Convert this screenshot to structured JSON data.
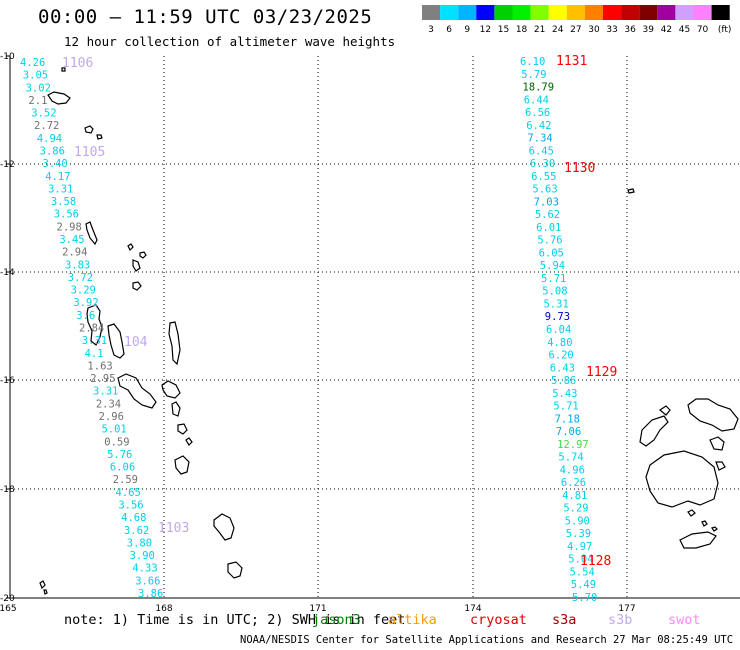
{
  "title": "00:00 – 11:59 UTC 03/23/2025",
  "subtitle": "12 hour collection of altimeter wave heights",
  "colorbar": {
    "colors": [
      "#808080",
      "#00e0ff",
      "#00b4ff",
      "#0000ff",
      "#00d000",
      "#00f000",
      "#80ff00",
      "#ffff00",
      "#ffc000",
      "#ff8000",
      "#ff0000",
      "#c00000",
      "#800000",
      "#a000a0",
      "#d0a0ff",
      "#ff80ff",
      "#000000"
    ],
    "labels": [
      "3",
      "6",
      "9",
      "12",
      "15",
      "18",
      "21",
      "24",
      "27",
      "30",
      "33",
      "36",
      "39",
      "42",
      "45",
      "70",
      "(ft)"
    ]
  },
  "axes": {
    "lon_ticks": [
      "165",
      "168",
      "171",
      "174",
      "177"
    ],
    "lat_ticks": [
      "-10",
      "-12",
      "-14",
      "-16",
      "-18",
      "-20"
    ]
  },
  "passes": [
    {
      "label": "1106",
      "color": "#c0a8f0"
    },
    {
      "label": "1105",
      "color": "#c0a8f0"
    },
    {
      "label": "104",
      "color": "#c0a8f0"
    },
    {
      "label": "1103",
      "color": "#c0a8f0"
    },
    {
      "label": "1131",
      "color": "#ff0000"
    },
    {
      "label": "1130",
      "color": "#ff0000"
    },
    {
      "label": "1129",
      "color": "#ff0000"
    },
    {
      "label": "1128",
      "color": "#ff0000"
    }
  ],
  "track_west": [
    {
      "v": "4.26",
      "c": "#00d0e8"
    },
    {
      "v": "3.05",
      "c": "#00d0e8"
    },
    {
      "v": "3.02",
      "c": "#00d0e8"
    },
    {
      "v": "2.1",
      "c": "#707070"
    },
    {
      "v": "3.52",
      "c": "#00d0e8"
    },
    {
      "v": "2.72",
      "c": "#707070"
    },
    {
      "v": "4.94",
      "c": "#00d0e8"
    },
    {
      "v": "3.86",
      "c": "#00d0e8"
    },
    {
      "v": "3.40",
      "c": "#00d0e8"
    },
    {
      "v": "4.17",
      "c": "#00d0e8"
    },
    {
      "v": "3.31",
      "c": "#00d0e8"
    },
    {
      "v": "3.58",
      "c": "#00d0e8"
    },
    {
      "v": "3.56",
      "c": "#00d0e8"
    },
    {
      "v": "2.98",
      "c": "#707070"
    },
    {
      "v": "3.45",
      "c": "#00d0e8"
    },
    {
      "v": "2.94",
      "c": "#707070"
    },
    {
      "v": "3.83",
      "c": "#00d0e8"
    },
    {
      "v": "3.72",
      "c": "#00d0e8"
    },
    {
      "v": "3.29",
      "c": "#00d0e8"
    },
    {
      "v": "3.92",
      "c": "#00d0e8"
    },
    {
      "v": "3.6",
      "c": "#00d0e8"
    },
    {
      "v": "2.84",
      "c": "#707070"
    },
    {
      "v": "3.31",
      "c": "#00d0e8"
    },
    {
      "v": "4.1",
      "c": "#00d0e8"
    },
    {
      "v": "1.63",
      "c": "#707070"
    },
    {
      "v": "2.95",
      "c": "#707070"
    },
    {
      "v": "3.31",
      "c": "#00d0e8"
    },
    {
      "v": "2.34",
      "c": "#707070"
    },
    {
      "v": "2.96",
      "c": "#707070"
    },
    {
      "v": "5.01",
      "c": "#00d0e8"
    },
    {
      "v": "0.59",
      "c": "#707070"
    },
    {
      "v": "5.76",
      "c": "#00d0e8"
    },
    {
      "v": "6.06",
      "c": "#00d0e8"
    },
    {
      "v": "2.59",
      "c": "#707070"
    },
    {
      "v": "4.65",
      "c": "#00d0e8"
    },
    {
      "v": "3.56",
      "c": "#00d0e8"
    },
    {
      "v": "4.68",
      "c": "#00d0e8"
    },
    {
      "v": "3.62",
      "c": "#00d0e8"
    },
    {
      "v": "3.80",
      "c": "#00d0e8"
    },
    {
      "v": "3.90",
      "c": "#00d0e8"
    },
    {
      "v": "4.33",
      "c": "#00d0e8"
    },
    {
      "v": "3.66",
      "c": "#00d0e8"
    },
    {
      "v": "3.86",
      "c": "#00d0e8"
    }
  ],
  "track_east": [
    {
      "v": "6.10",
      "c": "#00d0e8"
    },
    {
      "v": "5.79",
      "c": "#00d0e8"
    },
    {
      "v": "18.79",
      "c": "#006400"
    },
    {
      "v": "6.44",
      "c": "#00d0e8"
    },
    {
      "v": "6.56",
      "c": "#00d0e8"
    },
    {
      "v": "6.42",
      "c": "#00d0e8"
    },
    {
      "v": "7.34",
      "c": "#00a8e8"
    },
    {
      "v": "6.45",
      "c": "#00d0e8"
    },
    {
      "v": "6.30",
      "c": "#00d0e8"
    },
    {
      "v": "6.55",
      "c": "#00d0e8"
    },
    {
      "v": "5.63",
      "c": "#00d0e8"
    },
    {
      "v": "7.03",
      "c": "#00a8e8"
    },
    {
      "v": "5.62",
      "c": "#00d0e8"
    },
    {
      "v": "6.01",
      "c": "#00d0e8"
    },
    {
      "v": "5.76",
      "c": "#00d0e8"
    },
    {
      "v": "6.05",
      "c": "#00d0e8"
    },
    {
      "v": "5.94",
      "c": "#00d0e8"
    },
    {
      "v": "5.71",
      "c": "#00d0e8"
    },
    {
      "v": "5.08",
      "c": "#00d0e8"
    },
    {
      "v": "5.31",
      "c": "#00d0e8"
    },
    {
      "v": "9.73",
      "c": "#0000c0"
    },
    {
      "v": "6.04",
      "c": "#00d0e8"
    },
    {
      "v": "4.80",
      "c": "#00d0e8"
    },
    {
      "v": "6.20",
      "c": "#00d0e8"
    },
    {
      "v": "6.43",
      "c": "#00d0e8"
    },
    {
      "v": "5.86",
      "c": "#00d0e8"
    },
    {
      "v": "5.43",
      "c": "#00d0e8"
    },
    {
      "v": "5.71",
      "c": "#00d0e8"
    },
    {
      "v": "7.18",
      "c": "#00a8e8"
    },
    {
      "v": "7.06",
      "c": "#00a8e8"
    },
    {
      "v": "12.97",
      "c": "#40e040"
    },
    {
      "v": "5.74",
      "c": "#00d0e8"
    },
    {
      "v": "4.96",
      "c": "#00d0e8"
    },
    {
      "v": "6.26",
      "c": "#00d0e8"
    },
    {
      "v": "4.81",
      "c": "#00d0e8"
    },
    {
      "v": "5.29",
      "c": "#00d0e8"
    },
    {
      "v": "5.90",
      "c": "#00d0e8"
    },
    {
      "v": "5.39",
      "c": "#00d0e8"
    },
    {
      "v": "4.97",
      "c": "#00d0e8"
    },
    {
      "v": "5.04",
      "c": "#00d0e8"
    },
    {
      "v": "5.54",
      "c": "#00d0e8"
    },
    {
      "v": "5.49",
      "c": "#00d0e8"
    },
    {
      "v": "5.70",
      "c": "#00d0e8"
    }
  ],
  "note": "note: 1) Time is in UTC; 2) SWH is in feet",
  "satellites": [
    {
      "name": "jason3",
      "color": "#008000"
    },
    {
      "name": "altika",
      "color": "#ff9900"
    },
    {
      "name": "cryosat",
      "color": "#e00000"
    },
    {
      "name": "s3a",
      "color": "#a00000"
    },
    {
      "name": "s3b",
      "color": "#c0a8f0"
    },
    {
      "name": "swot",
      "color": "#ff88ff"
    }
  ],
  "footer": "NOAA/NESDIS Center for Satellite Applications and Research   27 Mar 08:25:49 UTC 2025"
}
